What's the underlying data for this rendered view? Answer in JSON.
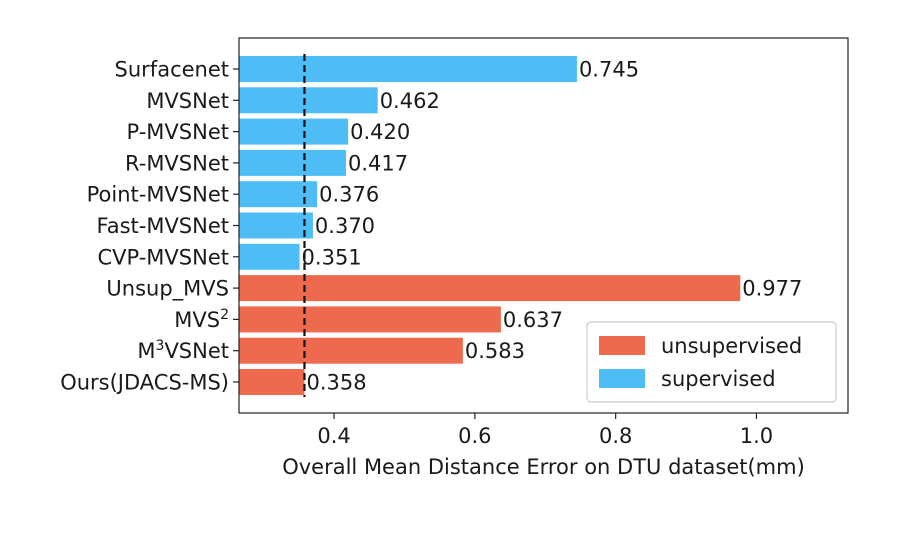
{
  "chart_data": {
    "type": "bar",
    "orientation": "horizontal",
    "title": "",
    "xlabel": "Overall Mean Distance Error on DTU dataset(mm)",
    "ylabel": "",
    "xlim": [
      0.265,
      1.13
    ],
    "xticks": [
      0.4,
      0.6,
      0.8,
      1.0
    ],
    "xtick_labels": [
      "0.4",
      "0.6",
      "0.8",
      "1.0"
    ],
    "categories": [
      {
        "base": "Surfacenet",
        "sup": ""
      },
      {
        "base": "MVSNet",
        "sup": ""
      },
      {
        "base": "P-MVSNet",
        "sup": ""
      },
      {
        "base": "R-MVSNet",
        "sup": ""
      },
      {
        "base": "Point-MVSNet",
        "sup": ""
      },
      {
        "base": "Fast-MVSNet",
        "sup": ""
      },
      {
        "base": "CVP-MVSNet",
        "sup": ""
      },
      {
        "base": "Unsup_MVS",
        "sup": ""
      },
      {
        "base": "MVS",
        "sup": "2"
      },
      {
        "base": "M",
        "sup": "3",
        "rest": "VSNet"
      },
      {
        "base": "Ours(JDACS-MS)",
        "sup": ""
      }
    ],
    "values": [
      0.745,
      0.462,
      0.42,
      0.417,
      0.376,
      0.37,
      0.351,
      0.977,
      0.637,
      0.583,
      0.358
    ],
    "value_labels": [
      "0.745",
      "0.462",
      "0.420",
      "0.417",
      "0.376",
      "0.370",
      "0.351",
      "0.977",
      "0.637",
      "0.583",
      "0.358"
    ],
    "groups": [
      "supervised",
      "supervised",
      "supervised",
      "supervised",
      "supervised",
      "supervised",
      "supervised",
      "unsupervised",
      "unsupervised",
      "unsupervised",
      "unsupervised"
    ],
    "reference_line": {
      "value": 0.358,
      "style": "dashed",
      "color": "#111111"
    },
    "series": [
      {
        "name": "unsupervised",
        "color": "#ee6a4e"
      },
      {
        "name": "supervised",
        "color": "#4fbdf5"
      }
    ],
    "legend": {
      "placement": "lower-right",
      "entries": [
        "unsupervised",
        "supervised"
      ]
    },
    "grid": false
  }
}
